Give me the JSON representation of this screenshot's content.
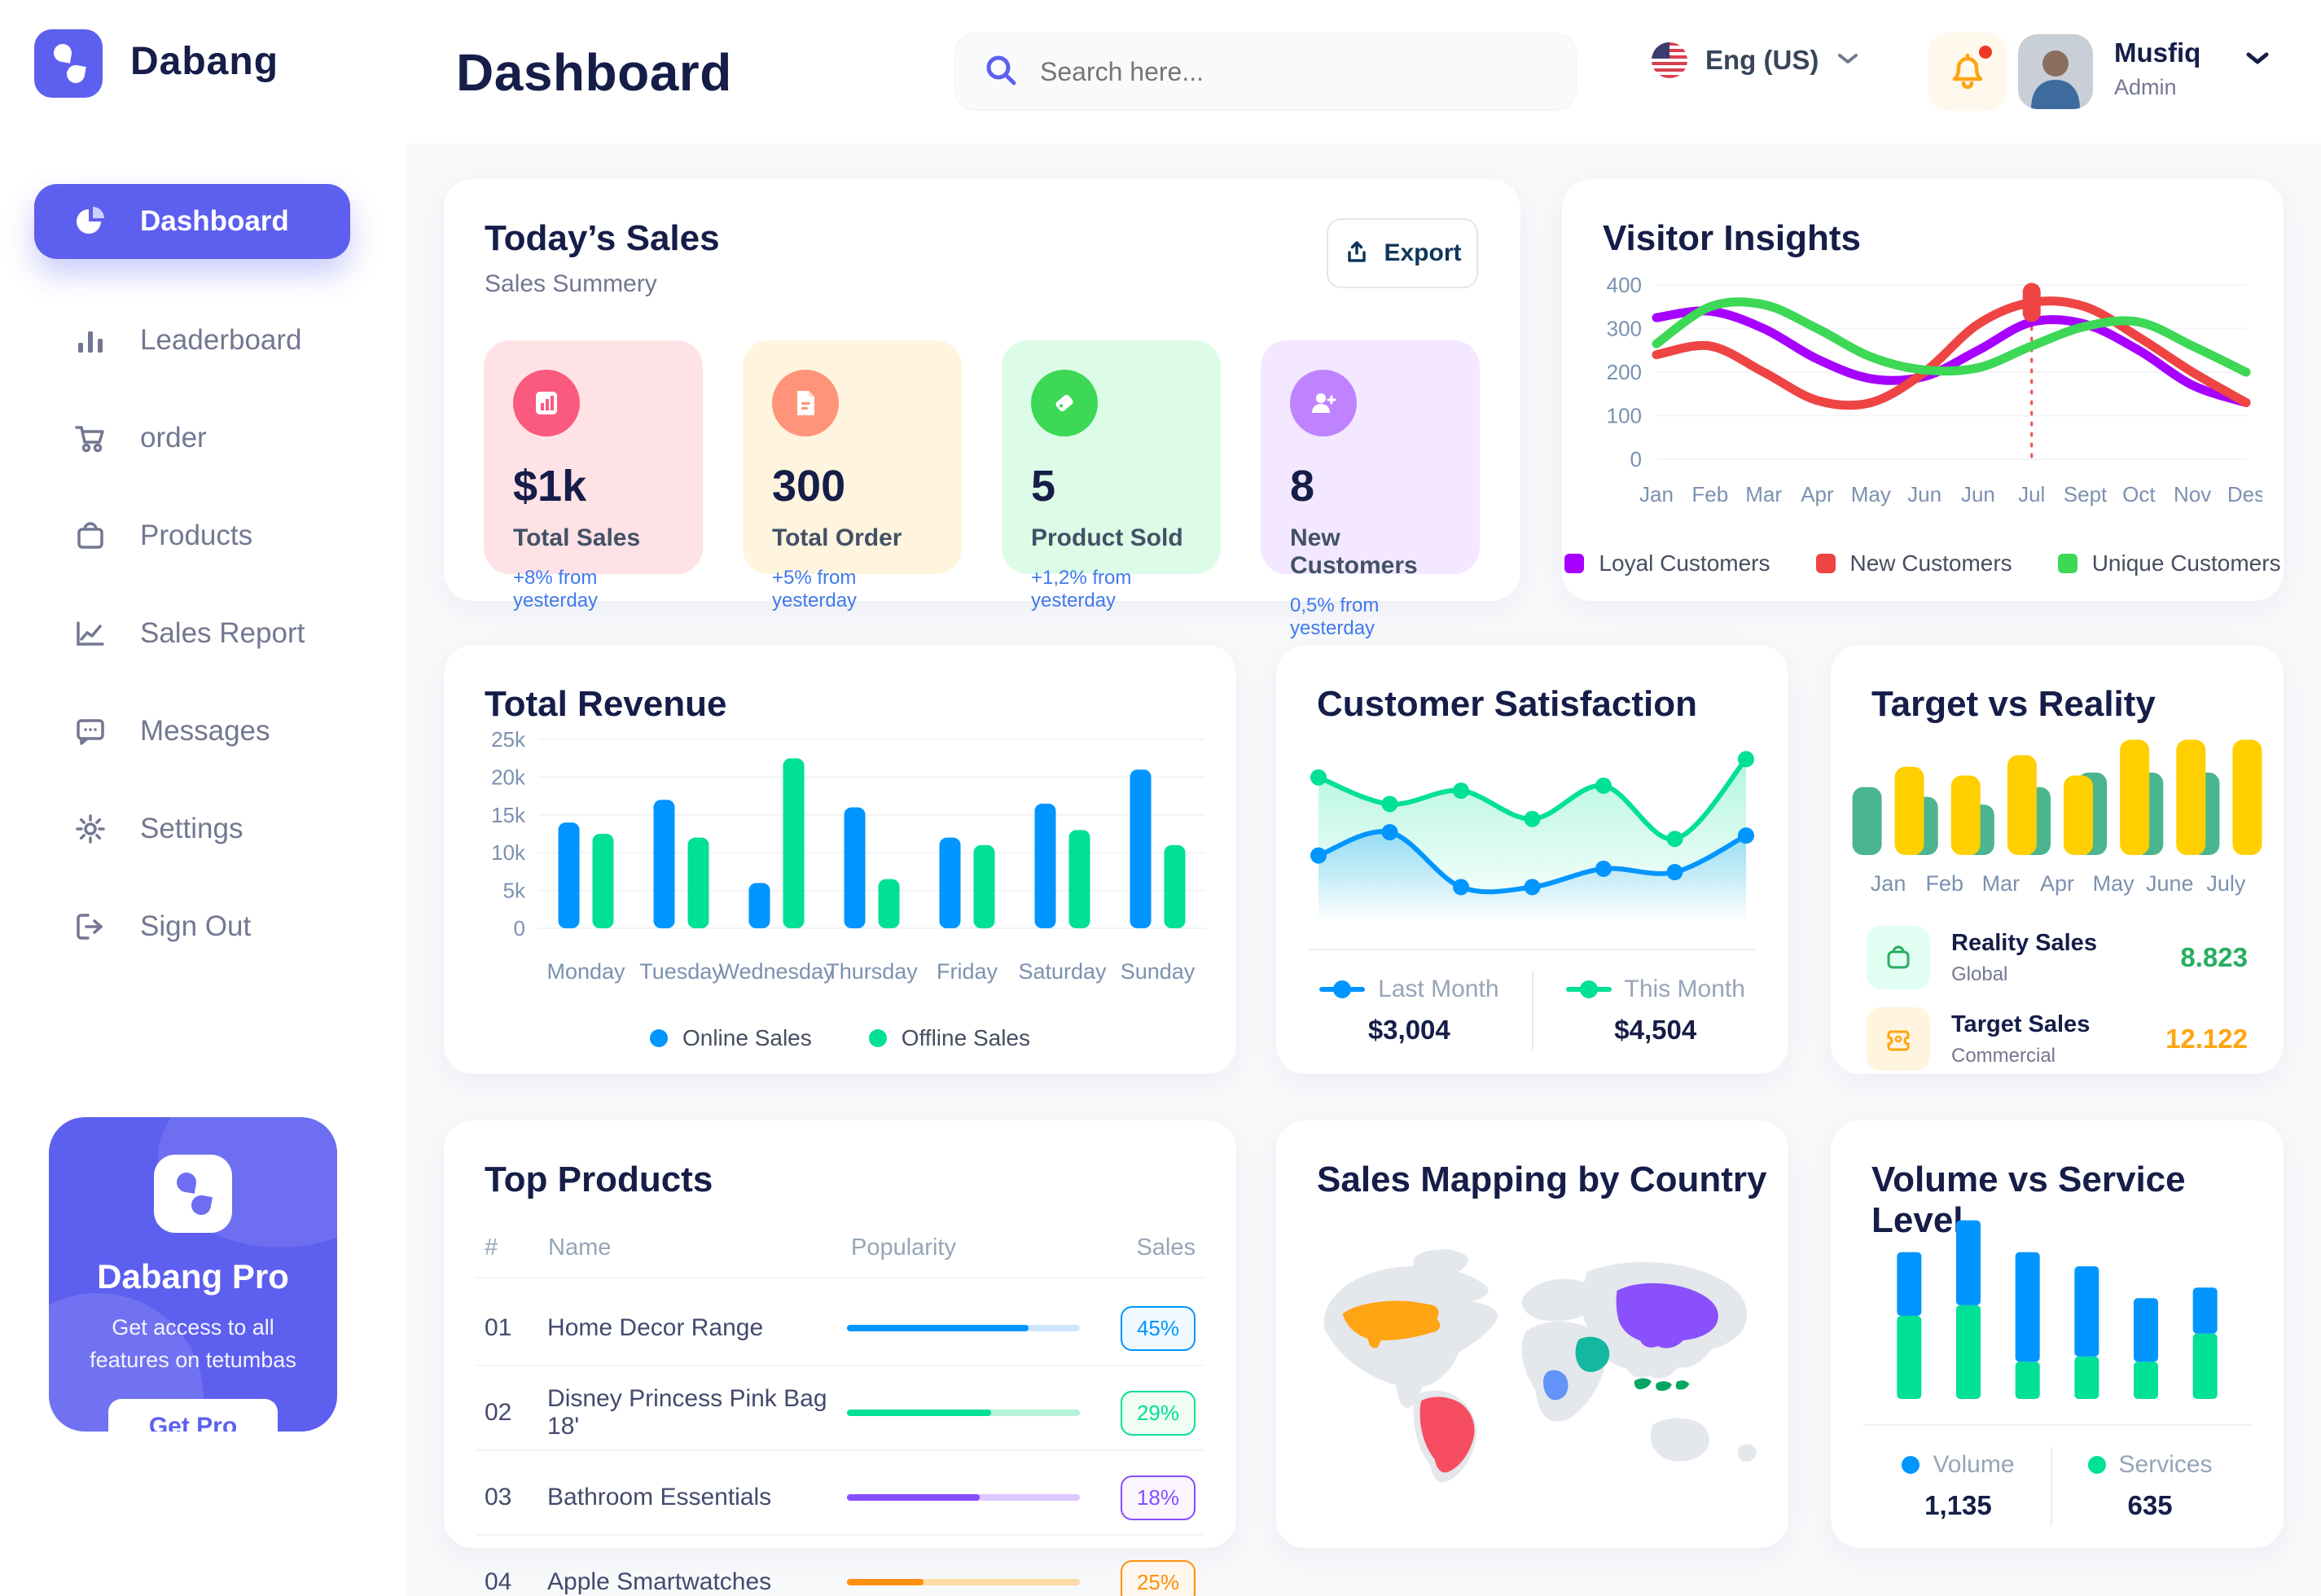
{
  "app": {
    "brand": "Dabang"
  },
  "header": {
    "title": "Dashboard",
    "search_placeholder": "Search here...",
    "language": "Eng (US)",
    "user_name": "Musfiq",
    "user_role": "Admin"
  },
  "sidebar": {
    "items": [
      {
        "label": "Dashboard"
      },
      {
        "label": "Leaderboard"
      },
      {
        "label": "order"
      },
      {
        "label": "Products"
      },
      {
        "label": "Sales Report"
      },
      {
        "label": "Messages"
      },
      {
        "label": "Settings"
      },
      {
        "label": "Sign Out"
      }
    ],
    "pro": {
      "title": "Dabang Pro",
      "line1": "Get access to all",
      "line2": "features on tetumbas",
      "cta": "Get Pro"
    }
  },
  "today_sales": {
    "title": "Today’s Sales",
    "subtitle": "Sales Summery",
    "export_label": "Export",
    "stats": [
      {
        "value": "$1k",
        "label": "Total Sales",
        "delta": "+8% from yesterday",
        "bg": "#FFE2E5",
        "icon": "#FA5A7D"
      },
      {
        "value": "300",
        "label": "Total Order",
        "delta": "+5% from yesterday",
        "bg": "#FFF4DE",
        "icon": "#FF947A"
      },
      {
        "value": "5",
        "label": "Product Sold",
        "delta": "+1,2% from yesterday",
        "bg": "#DCFCE7",
        "icon": "#3CD856"
      },
      {
        "value": "8",
        "label": "New Customers",
        "delta": "0,5% from yesterday",
        "bg": "#F3E8FF",
        "icon": "#BF83FF"
      }
    ],
    "delta_color": "#4079ED"
  },
  "chart_data": [
    {
      "id": "visitor_insights",
      "type": "line",
      "title": "Visitor Insights",
      "x": [
        "Jan",
        "Feb",
        "Mar",
        "Apr",
        "May",
        "Jun",
        "Jun",
        "Jul",
        "Sept",
        "Oct",
        "Nov",
        "Des"
      ],
      "ylim": [
        0,
        400
      ],
      "yticks": [
        0,
        100,
        200,
        300,
        400
      ],
      "series": [
        {
          "name": "Loyal Customers",
          "color": "#A700FF",
          "values": [
            325,
            340,
            300,
            230,
            185,
            190,
            250,
            315,
            310,
            250,
            170,
            130
          ]
        },
        {
          "name": "New Customers",
          "color": "#EF4444",
          "values": [
            240,
            260,
            200,
            135,
            130,
            200,
            310,
            360,
            350,
            280,
            200,
            130
          ]
        },
        {
          "name": "Unique Customers",
          "color": "#3CD856",
          "values": [
            265,
            350,
            355,
            300,
            235,
            205,
            210,
            260,
            305,
            315,
            260,
            200
          ]
        }
      ],
      "highlight": {
        "series": "New Customers",
        "x_index": 7
      },
      "legend_position": "bottom"
    },
    {
      "id": "total_revenue",
      "type": "bar",
      "title": "Total Revenue",
      "categories": [
        "Monday",
        "Tuesday",
        "Wednesday",
        "Thursday",
        "Friday",
        "Saturday",
        "Sunday"
      ],
      "ylim": [
        0,
        25000
      ],
      "yticks": [
        0,
        5000,
        10000,
        15000,
        20000,
        25000
      ],
      "ytick_labels": [
        "0",
        "5k",
        "10k",
        "15k",
        "20k",
        "25k"
      ],
      "series": [
        {
          "name": "Online Sales",
          "color": "#0095FF",
          "values": [
            14000,
            17000,
            6000,
            16000,
            12000,
            16500,
            21000
          ]
        },
        {
          "name": "Offline Sales",
          "color": "#00E096",
          "values": [
            12500,
            12000,
            22500,
            6500,
            11000,
            13000,
            11000
          ]
        }
      ],
      "grid": true,
      "legend_position": "bottom"
    },
    {
      "id": "customer_satisfaction",
      "type": "area",
      "title": "Customer Satisfaction",
      "ylim": [
        0,
        100
      ],
      "series": [
        {
          "name": "Last Month",
          "color": "#0095FF",
          "total": "$3,004",
          "values": [
            35,
            49,
            16,
            16,
            27,
            25,
            47
          ]
        },
        {
          "name": "This Month",
          "color": "#00E096",
          "total": "$4,504",
          "values": [
            82,
            66,
            74,
            57,
            77,
            45,
            93
          ]
        }
      ],
      "legend_position": "bottom"
    },
    {
      "id": "target_vs_reality",
      "type": "bar",
      "title": "Target vs Reality",
      "categories": [
        "Jan",
        "Feb",
        "Mar",
        "Apr",
        "May",
        "June",
        "July"
      ],
      "ylim": [
        0,
        12.6
      ],
      "series": [
        {
          "name": "Reality Sales",
          "color": "#4AB58E",
          "values": [
            7,
            6,
            5.2,
            7,
            8.5,
            8.5,
            8.5
          ]
        },
        {
          "name": "Target Sales",
          "color": "#FFCF00",
          "values": [
            9.1,
            8.2,
            10.3,
            8.2,
            11.9,
            11.9,
            11.9
          ]
        }
      ],
      "legend": [
        {
          "label": "Reality Sales",
          "sub": "Global",
          "value": "8.823",
          "value_color": "#27AE60",
          "tile": "#E2FFF3",
          "icon": "bag-icon"
        },
        {
          "label": "Target Sales",
          "sub": "Commercial",
          "value": "12.122",
          "value_color": "#FFA412",
          "tile": "#FFF4DE",
          "icon": "ticket-icon"
        }
      ]
    },
    {
      "id": "volume_vs_service",
      "type": "stacked-bar",
      "title": "Volume vs Service Level",
      "ylim": [
        0,
        105
      ],
      "series": [
        {
          "name": "Volume",
          "color": "#0095FF",
          "total": "1,135",
          "values": [
            36,
            48,
            62,
            51,
            36,
            26
          ]
        },
        {
          "name": "Services",
          "color": "#00E096",
          "total": "635",
          "values": [
            47,
            53,
            21,
            24,
            21,
            37
          ]
        }
      ],
      "legend_position": "bottom"
    }
  ],
  "top_products": {
    "title": "Top Products",
    "headers": {
      "num": "#",
      "name": "Name",
      "popularity": "Popularity",
      "sales": "Sales"
    },
    "rows": [
      {
        "num": "01",
        "name": "Home Decor Range",
        "popularity": 78,
        "sales": "45%",
        "color": "#0095FF",
        "track": "#CDE7FF",
        "badge_bg": "#F0F9FF"
      },
      {
        "num": "02",
        "name": "Disney Princess Pink Bag 18'",
        "popularity": 62,
        "sales": "29%",
        "color": "#00E096",
        "track": "#B5F2D9",
        "badge_bg": "#F0FDF4"
      },
      {
        "num": "03",
        "name": "Bathroom Essentials",
        "popularity": 57,
        "sales": "18%",
        "color": "#884DFF",
        "track": "#DCC7FF",
        "badge_bg": "#FAF5FF"
      },
      {
        "num": "04",
        "name": "Apple Smartwatches",
        "popularity": 33,
        "sales": "25%",
        "color": "#FF8F0D",
        "track": "#FFD9A6",
        "badge_bg": "#FFF7ED"
      }
    ]
  },
  "sales_map": {
    "title": "Sales Mapping by Country",
    "countries": [
      {
        "name": "United States",
        "color": "#FFA412"
      },
      {
        "name": "Brazil",
        "color": "#F64E60"
      },
      {
        "name": "China",
        "color": "#8950FC"
      },
      {
        "name": "Saudi Arabia",
        "color": "#14B8A0"
      },
      {
        "name": "Congo",
        "color": "#6394F8"
      },
      {
        "name": "Indonesia",
        "color": "#06A561"
      }
    ]
  }
}
